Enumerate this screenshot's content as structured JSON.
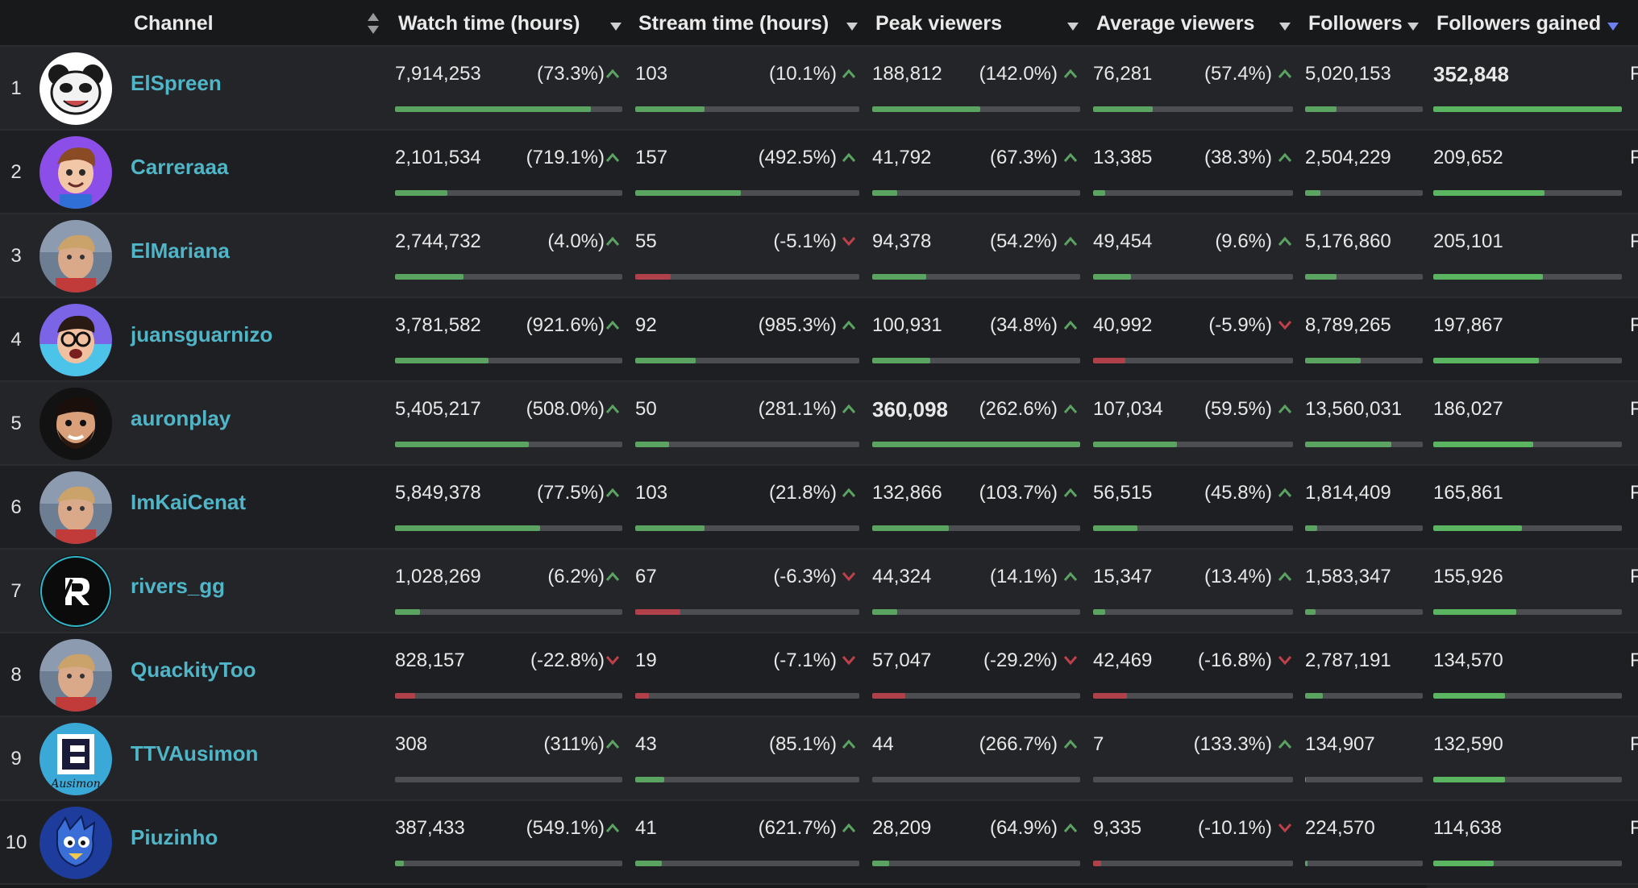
{
  "headers": {
    "channel": "Channel",
    "watch_time": "Watch time (hours)",
    "stream_time": "Stream time (hours)",
    "peak_viewers": "Peak viewers",
    "average_viewers": "Average viewers",
    "followers": "Followers",
    "followers_gained": "Followers gained"
  },
  "colors": {
    "accent_name": "#4fb5c7",
    "positive": "#5aa360",
    "negative": "#c0404a",
    "sort_active": "#6e7ff0"
  },
  "rows": [
    {
      "rank": "1",
      "name": "ElSpreen",
      "avatar_icon": "panda-avatar-icon",
      "watch": "7,914,253",
      "watch_chg": "(73.3%)",
      "watch_dir": "up",
      "watch_fill": 0.86,
      "stream": "103",
      "stream_chg": "(10.1%)",
      "stream_dir": "up",
      "stream_fill": 0.31,
      "peak": "188,812",
      "peak_chg": "(142.0%)",
      "peak_dir": "up",
      "peak_fill": 0.52,
      "avg": "76,281",
      "avg_chg": "(57.4%)",
      "avg_dir": "up",
      "avg_fill": 0.3,
      "followers": "5,020,153",
      "followers_fill": 0.27,
      "gained": "352,848",
      "gained_bold": true,
      "gained_fill": 1.0,
      "edge": "F"
    },
    {
      "rank": "2",
      "name": "Carreraaa",
      "avatar_icon": "cartoon-boy-avatar-icon",
      "watch": "2,101,534",
      "watch_chg": "(719.1%)",
      "watch_dir": "up",
      "watch_fill": 0.23,
      "stream": "157",
      "stream_chg": "(492.5%)",
      "stream_dir": "up",
      "stream_fill": 0.47,
      "peak": "41,792",
      "peak_chg": "(67.3%)",
      "peak_dir": "up",
      "peak_fill": 0.12,
      "avg": "13,385",
      "avg_chg": "(38.3%)",
      "avg_dir": "up",
      "avg_fill": 0.06,
      "followers": "2,504,229",
      "followers_fill": 0.13,
      "gained": "209,652",
      "gained_bold": false,
      "gained_fill": 0.59,
      "edge": "F"
    },
    {
      "rank": "3",
      "name": "ElMariana",
      "avatar_icon": "photo-avatar-icon",
      "watch": "2,744,732",
      "watch_chg": "(4.0%)",
      "watch_dir": "up",
      "watch_fill": 0.3,
      "stream": "55",
      "stream_chg": "(-5.1%)",
      "stream_dir": "down",
      "stream_fill": 0.16,
      "peak": "94,378",
      "peak_chg": "(54.2%)",
      "peak_dir": "up",
      "peak_fill": 0.26,
      "avg": "49,454",
      "avg_chg": "(9.6%)",
      "avg_dir": "up",
      "avg_fill": 0.19,
      "followers": "5,176,860",
      "followers_fill": 0.27,
      "gained": "205,101",
      "gained_bold": false,
      "gained_fill": 0.58,
      "edge": "F"
    },
    {
      "rank": "4",
      "name": "juansguarnizo",
      "avatar_icon": "cartoon-glasses-avatar-icon",
      "watch": "3,781,582",
      "watch_chg": "(921.6%)",
      "watch_dir": "up",
      "watch_fill": 0.41,
      "stream": "92",
      "stream_chg": "(985.3%)",
      "stream_dir": "up",
      "stream_fill": 0.27,
      "peak": "100,931",
      "peak_chg": "(34.8%)",
      "peak_dir": "up",
      "peak_fill": 0.28,
      "avg": "40,992",
      "avg_chg": "(-5.9%)",
      "avg_dir": "down",
      "avg_fill": 0.16,
      "followers": "8,789,265",
      "followers_fill": 0.47,
      "gained": "197,867",
      "gained_bold": false,
      "gained_fill": 0.56,
      "edge": "F"
    },
    {
      "rank": "5",
      "name": "auronplay",
      "avatar_icon": "cartoon-beard-avatar-icon",
      "watch": "5,405,217",
      "watch_chg": "(508.0%)",
      "watch_dir": "up",
      "watch_fill": 0.59,
      "stream": "50",
      "stream_chg": "(281.1%)",
      "stream_dir": "up",
      "stream_fill": 0.15,
      "peak": "360,098",
      "peak_bold": true,
      "peak_chg": "(262.6%)",
      "peak_dir": "up",
      "peak_fill": 1.0,
      "avg": "107,034",
      "avg_chg": "(59.5%)",
      "avg_dir": "up",
      "avg_fill": 0.42,
      "followers": "13,560,031",
      "followers_fill": 0.73,
      "gained": "186,027",
      "gained_bold": false,
      "gained_fill": 0.53,
      "edge": "F"
    },
    {
      "rank": "6",
      "name": "ImKaiCenat",
      "avatar_icon": "photo-avatar-icon",
      "watch": "5,849,378",
      "watch_chg": "(77.5%)",
      "watch_dir": "up",
      "watch_fill": 0.64,
      "stream": "103",
      "stream_chg": "(21.8%)",
      "stream_dir": "up",
      "stream_fill": 0.31,
      "peak": "132,866",
      "peak_chg": "(103.7%)",
      "peak_dir": "up",
      "peak_fill": 0.37,
      "avg": "56,515",
      "avg_chg": "(45.8%)",
      "avg_dir": "up",
      "avg_fill": 0.22,
      "followers": "1,814,409",
      "followers_fill": 0.1,
      "gained": "165,861",
      "gained_bold": false,
      "gained_fill": 0.47,
      "edge": "F"
    },
    {
      "rank": "7",
      "name": "rivers_gg",
      "avatar_icon": "r-logo-avatar-icon",
      "watch": "1,028,269",
      "watch_chg": "(6.2%)",
      "watch_dir": "up",
      "watch_fill": 0.11,
      "stream": "67",
      "stream_chg": "(-6.3%)",
      "stream_dir": "down",
      "stream_fill": 0.2,
      "peak": "44,324",
      "peak_chg": "(14.1%)",
      "peak_dir": "up",
      "peak_fill": 0.12,
      "avg": "15,347",
      "avg_chg": "(13.4%)",
      "avg_dir": "up",
      "avg_fill": 0.06,
      "followers": "1,583,347",
      "followers_fill": 0.09,
      "gained": "155,926",
      "gained_bold": false,
      "gained_fill": 0.44,
      "edge": "F"
    },
    {
      "rank": "8",
      "name": "QuackityToo",
      "avatar_icon": "photo-avatar-icon",
      "watch": "828,157",
      "watch_chg": "(-22.8%)",
      "watch_dir": "down",
      "watch_fill": 0.09,
      "stream": "19",
      "stream_chg": "(-7.1%)",
      "stream_dir": "down",
      "stream_fill": 0.06,
      "peak": "57,047",
      "peak_chg": "(-29.2%)",
      "peak_dir": "down",
      "peak_fill": 0.16,
      "avg": "42,469",
      "avg_chg": "(-16.8%)",
      "avg_dir": "down",
      "avg_fill": 0.17,
      "followers": "2,787,191",
      "followers_fill": 0.15,
      "gained": "134,570",
      "gained_bold": false,
      "gained_fill": 0.38,
      "edge": "F"
    },
    {
      "rank": "9",
      "name": "TTVAusimon",
      "avatar_icon": "ausimon-logo-avatar-icon",
      "watch": "308",
      "watch_chg": "(311%)",
      "watch_dir": "up",
      "watch_fill": 0.0,
      "stream": "43",
      "stream_chg": "(85.1%)",
      "stream_dir": "up",
      "stream_fill": 0.13,
      "peak": "44",
      "peak_chg": "(266.7%)",
      "peak_dir": "up",
      "peak_fill": 0.0,
      "avg": "7",
      "avg_chg": "(133.3%)",
      "avg_dir": "up",
      "avg_fill": 0.0,
      "followers": "134,907",
      "followers_fill": 0.01,
      "gained": "132,590",
      "gained_bold": false,
      "gained_fill": 0.38,
      "edge": "F"
    },
    {
      "rank": "10",
      "name": "Piuzinho",
      "avatar_icon": "blue-mascot-avatar-icon",
      "watch": "387,433",
      "watch_chg": "(549.1%)",
      "watch_dir": "up",
      "watch_fill": 0.04,
      "stream": "41",
      "stream_chg": "(621.7%)",
      "stream_dir": "up",
      "stream_fill": 0.12,
      "peak": "28,209",
      "peak_chg": "(64.9%)",
      "peak_dir": "up",
      "peak_fill": 0.08,
      "avg": "9,335",
      "avg_chg": "(-10.1%)",
      "avg_dir": "down",
      "avg_fill": 0.04,
      "followers": "224,570",
      "followers_fill": 0.02,
      "gained": "114,638",
      "gained_bold": false,
      "gained_fill": 0.32,
      "edge": "F"
    }
  ]
}
